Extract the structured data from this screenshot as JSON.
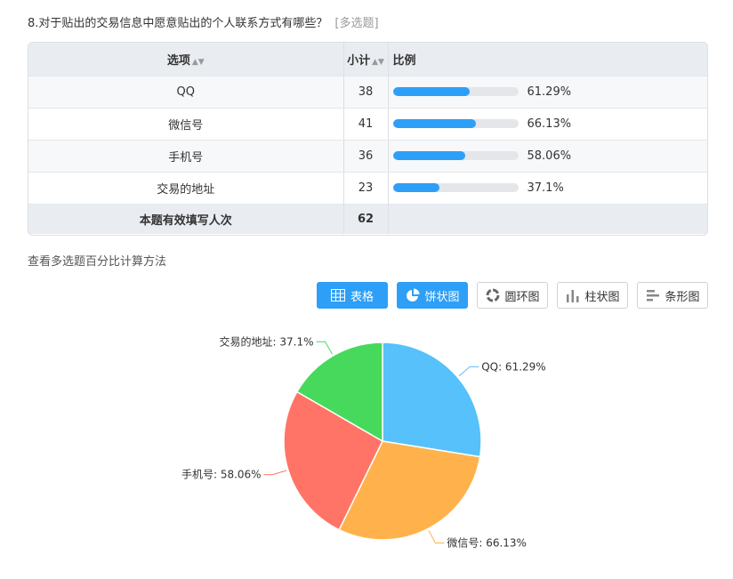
{
  "question": {
    "title": "8.对于贴出的交易信息中愿意贴出的个人联系方式有哪些？",
    "tag": "[多选题]"
  },
  "table": {
    "headers": {
      "option": "选项",
      "count": "小计",
      "ratio": "比例"
    },
    "rows": [
      {
        "label": "QQ",
        "count": "38",
        "pct": "61.29%",
        "value": 61.29
      },
      {
        "label": "微信号",
        "count": "41",
        "pct": "66.13%",
        "value": 66.13
      },
      {
        "label": "手机号",
        "count": "36",
        "pct": "58.06%",
        "value": 58.06
      },
      {
        "label": "交易的地址",
        "count": "23",
        "pct": "37.1%",
        "value": 37.1
      }
    ],
    "total": {
      "label": "本题有效填写人次",
      "count": "62"
    }
  },
  "calc_link": "查看多选题百分比计算方法",
  "buttons": [
    {
      "label": "表格",
      "icon": "table-icon",
      "active": true
    },
    {
      "label": "饼状图",
      "icon": "pie-icon",
      "active": true
    },
    {
      "label": "圆环图",
      "icon": "ring-icon",
      "active": false
    },
    {
      "label": "柱状图",
      "icon": "bar-chart-icon",
      "active": false
    },
    {
      "label": "条形图",
      "icon": "horizontal-bar-icon",
      "active": false
    }
  ],
  "chart_data": {
    "type": "pie",
    "categories": [
      "QQ",
      "微信号",
      "手机号",
      "交易的地址"
    ],
    "values": [
      61.29,
      66.13,
      58.06,
      37.1
    ],
    "labels": [
      "QQ: 61.29%",
      "微信号: 66.13%",
      "手机号: 58.06%",
      "交易的地址: 37.1%"
    ],
    "colors": [
      "#56c1fa",
      "#ffb24c",
      "#ff7466",
      "#46d95c"
    ]
  }
}
